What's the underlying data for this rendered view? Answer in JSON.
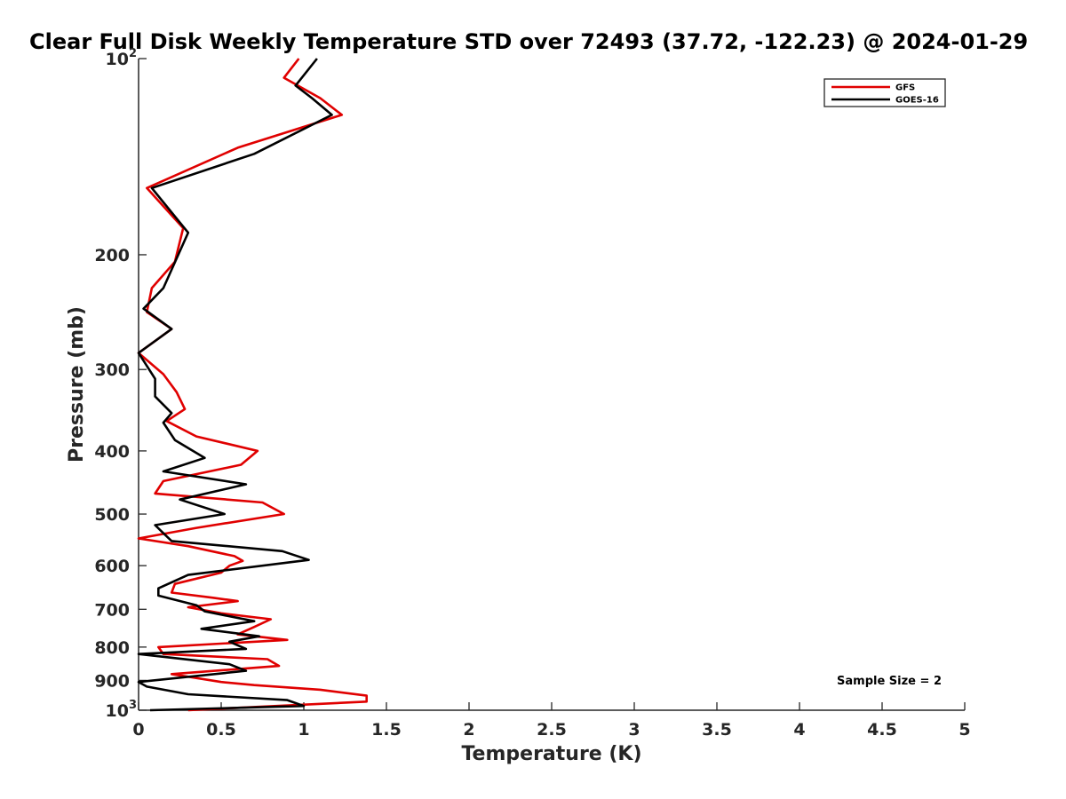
{
  "chart_data": {
    "type": "line",
    "title": "Clear Full Disk Weekly Temperature STD over 72493 (37.72, -122.23) @ 2024-01-29",
    "xlabel": "Temperature (K)",
    "ylabel": "Pressure (mb)",
    "xlim": [
      0,
      5
    ],
    "ylim": [
      100,
      1000
    ],
    "yscale": "log",
    "y_reversed": true,
    "grid": false,
    "legend_position": "top-right",
    "x_ticks": [
      {
        "value": 0,
        "label": "0"
      },
      {
        "value": 0.5,
        "label": "0.5"
      },
      {
        "value": 1,
        "label": "1"
      },
      {
        "value": 1.5,
        "label": "1.5"
      },
      {
        "value": 2,
        "label": "2"
      },
      {
        "value": 2.5,
        "label": "2.5"
      },
      {
        "value": 3,
        "label": "3"
      },
      {
        "value": 3.5,
        "label": "3.5"
      },
      {
        "value": 4,
        "label": "4"
      },
      {
        "value": 4.5,
        "label": "4.5"
      },
      {
        "value": 5,
        "label": "5"
      }
    ],
    "y_ticks": [
      {
        "value": 100,
        "base": "10",
        "exp": "2"
      },
      {
        "value": 200,
        "base": "200",
        "exp": ""
      },
      {
        "value": 300,
        "base": "300",
        "exp": ""
      },
      {
        "value": 400,
        "base": "400",
        "exp": ""
      },
      {
        "value": 500,
        "base": "500",
        "exp": ""
      },
      {
        "value": 600,
        "base": "600",
        "exp": ""
      },
      {
        "value": 700,
        "base": "700",
        "exp": ""
      },
      {
        "value": 800,
        "base": "800",
        "exp": ""
      },
      {
        "value": 900,
        "base": "900",
        "exp": ""
      },
      {
        "value": 1000,
        "base": "10",
        "exp": "3"
      }
    ],
    "annotation": "Sample Size = 2",
    "series": [
      {
        "name": "GFS",
        "color": "#e00000",
        "points": [
          [
            0.3,
            1000
          ],
          [
            1.38,
            970
          ],
          [
            1.38,
            950
          ],
          [
            1.1,
            930
          ],
          [
            0.7,
            915
          ],
          [
            0.5,
            905
          ],
          [
            0.2,
            880
          ],
          [
            0.85,
            855
          ],
          [
            0.78,
            835
          ],
          [
            0.15,
            820
          ],
          [
            0.12,
            800
          ],
          [
            0.9,
            780
          ],
          [
            0.6,
            765
          ],
          [
            0.7,
            745
          ],
          [
            0.8,
            725
          ],
          [
            0.5,
            710
          ],
          [
            0.3,
            695
          ],
          [
            0.6,
            680
          ],
          [
            0.45,
            672
          ],
          [
            0.2,
            660
          ],
          [
            0.22,
            640
          ],
          [
            0.5,
            615
          ],
          [
            0.55,
            600
          ],
          [
            0.63,
            590
          ],
          [
            0.58,
            580
          ],
          [
            0.3,
            560
          ],
          [
            0.0,
            545
          ],
          [
            0.35,
            525
          ],
          [
            0.88,
            500
          ],
          [
            0.75,
            480
          ],
          [
            0.1,
            465
          ],
          [
            0.15,
            445
          ],
          [
            0.62,
            420
          ],
          [
            0.72,
            400
          ],
          [
            0.35,
            380
          ],
          [
            0.17,
            360
          ],
          [
            0.28,
            345
          ],
          [
            0.23,
            325
          ],
          [
            0.15,
            305
          ],
          [
            0.0,
            283
          ],
          [
            0.2,
            260
          ],
          [
            0.05,
            245
          ],
          [
            0.08,
            225
          ],
          [
            0.22,
            205
          ],
          [
            0.27,
            182
          ],
          [
            0.05,
            158
          ],
          [
            0.6,
            137
          ],
          [
            1.23,
            122
          ],
          [
            1.1,
            115
          ],
          [
            0.88,
            107
          ],
          [
            0.97,
            100
          ]
        ]
      },
      {
        "name": "GOES-16",
        "color": "#000000",
        "points": [
          [
            0.07,
            1000
          ],
          [
            1.0,
            985
          ],
          [
            0.9,
            965
          ],
          [
            0.3,
            945
          ],
          [
            0.05,
            920
          ],
          [
            0.0,
            905
          ],
          [
            0.65,
            870
          ],
          [
            0.55,
            850
          ],
          [
            0.0,
            820
          ],
          [
            0.65,
            805
          ],
          [
            0.55,
            785
          ],
          [
            0.73,
            770
          ],
          [
            0.38,
            750
          ],
          [
            0.7,
            730
          ],
          [
            0.4,
            705
          ],
          [
            0.35,
            690
          ],
          [
            0.12,
            667
          ],
          [
            0.12,
            650
          ],
          [
            0.3,
            620
          ],
          [
            1.03,
            588
          ],
          [
            0.87,
            570
          ],
          [
            0.2,
            550
          ],
          [
            0.15,
            535
          ],
          [
            0.1,
            520
          ],
          [
            0.52,
            500
          ],
          [
            0.25,
            475
          ],
          [
            0.65,
            450
          ],
          [
            0.15,
            430
          ],
          [
            0.4,
            410
          ],
          [
            0.22,
            385
          ],
          [
            0.15,
            362
          ],
          [
            0.2,
            350
          ],
          [
            0.1,
            330
          ],
          [
            0.1,
            310
          ],
          [
            0.0,
            283
          ],
          [
            0.2,
            260
          ],
          [
            0.03,
            242
          ],
          [
            0.15,
            225
          ],
          [
            0.3,
            185
          ],
          [
            0.08,
            158
          ],
          [
            0.7,
            140
          ],
          [
            1.17,
            122
          ],
          [
            1.05,
            115
          ],
          [
            0.95,
            110
          ],
          [
            1.08,
            100
          ]
        ]
      }
    ]
  }
}
